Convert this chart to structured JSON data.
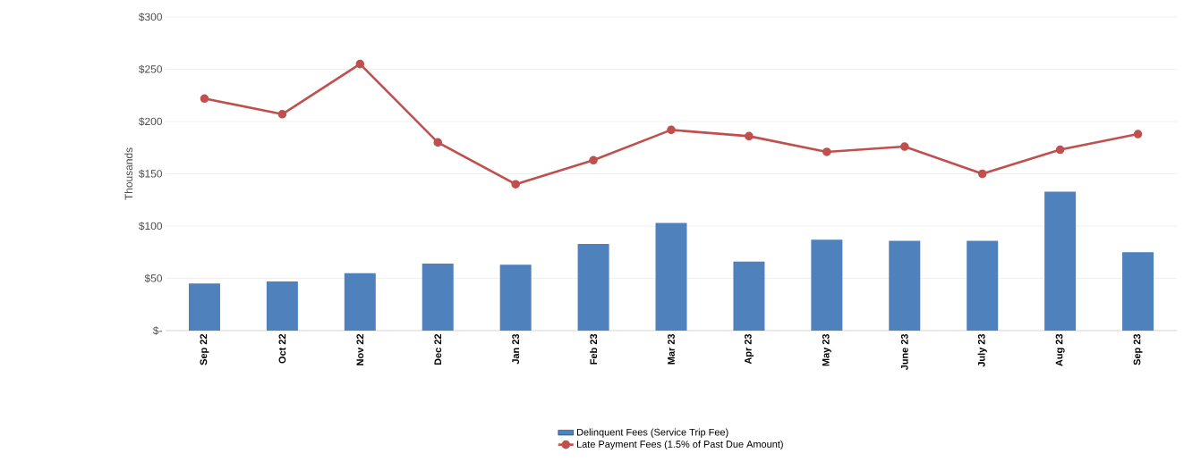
{
  "chart_data": {
    "type": "bar",
    "ylabel": "Thousands",
    "categories": [
      "Sep 22",
      "Oct 22",
      "Nov 22",
      "Dec 22",
      "Jan 23",
      "Feb 23",
      "Mar 23",
      "Apr 23",
      "May 23",
      "June 23",
      "July 23",
      "Aug 23",
      "Sep 23"
    ],
    "series": [
      {
        "name": "Delinquent Fees (Service Trip Fee)",
        "color": "#4f81bd",
        "values": [
          45,
          47,
          55,
          64,
          63,
          83,
          103,
          66,
          87,
          86,
          86,
          133,
          75
        ]
      },
      {
        "name": "Late Payment Fees (1.5% of Past Due Amount)",
        "type": "line",
        "color": "#c0504d",
        "marker": "circle",
        "values": [
          222,
          207,
          255,
          180,
          140,
          163,
          192,
          186,
          171,
          176,
          150,
          173,
          188
        ]
      }
    ],
    "ylim": [
      0,
      300
    ],
    "yticks": [
      {
        "value": 0,
        "label": "$-"
      },
      {
        "value": 50,
        "label": "$50"
      },
      {
        "value": 100,
        "label": "$100"
      },
      {
        "value": 150,
        "label": "$150"
      },
      {
        "value": 200,
        "label": "$200"
      },
      {
        "value": 250,
        "label": "$250"
      },
      {
        "value": 300,
        "label": "$300"
      }
    ],
    "grid": "y",
    "legend": "bottom"
  }
}
